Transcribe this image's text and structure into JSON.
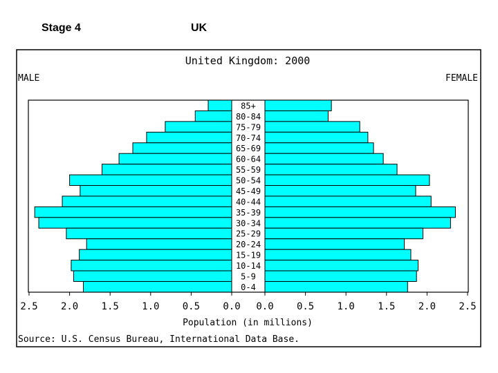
{
  "slide": {
    "stage_label": "Stage 4",
    "country_label": "UK"
  },
  "chart_data": {
    "type": "bar",
    "subtype": "population-pyramid",
    "title": "United Kingdom: 2000",
    "left_label": "MALE",
    "right_label": "FEMALE",
    "xlabel": "Population (in millions)",
    "source": "Source: U.S. Census Bureau, International Data Base.",
    "xlim": [
      0,
      2.5
    ],
    "x_ticks": [
      "0.0",
      "0.5",
      "1.0",
      "1.5",
      "2.0",
      "2.5"
    ],
    "categories": [
      "85+",
      "80-84",
      "75-79",
      "70-74",
      "65-69",
      "60-64",
      "55-59",
      "50-54",
      "45-49",
      "40-44",
      "35-39",
      "30-34",
      "25-29",
      "20-24",
      "15-19",
      "10-14",
      "5-9",
      "0-4"
    ],
    "series": [
      {
        "name": "MALE",
        "values": [
          0.29,
          0.45,
          0.82,
          1.05,
          1.22,
          1.39,
          1.6,
          2.0,
          1.87,
          2.09,
          2.43,
          2.38,
          2.04,
          1.79,
          1.88,
          1.98,
          1.95,
          1.83
        ]
      },
      {
        "name": "FEMALE",
        "values": [
          0.82,
          0.78,
          1.17,
          1.27,
          1.34,
          1.46,
          1.63,
          2.03,
          1.86,
          2.05,
          2.35,
          2.29,
          1.95,
          1.72,
          1.8,
          1.89,
          1.87,
          1.76
        ]
      }
    ],
    "bar_color": "#00ffff",
    "grid": false
  }
}
